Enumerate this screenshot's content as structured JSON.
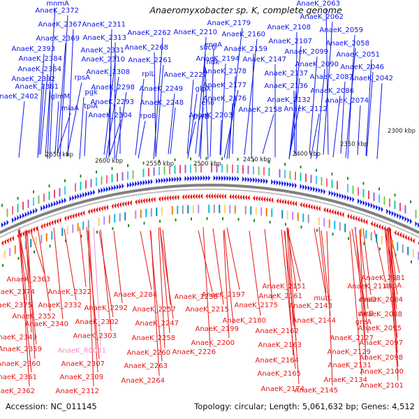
{
  "title": "Anaeromyxobacter sp. K, complete genome",
  "footer": {
    "accession": "Accession: NC_011145",
    "summary": "Topology: circular; Length: 5,061,632 bp; Genes: 4,512"
  },
  "colors": {
    "forward": "#0a14e6",
    "reverse": "#e61414",
    "rna": "#f08cd2",
    "backbone": "#808080",
    "tickmark": "#1e8c1e"
  },
  "ticks": [
    "2650 kbp",
    "2600 kbp",
    "2550 kbp",
    "2500 kbp",
    "2450 kbp",
    "2400 kbp",
    "2350 kbp",
    "2300 kbp"
  ],
  "forward_labels": [
    "mnmA",
    "AnaeK_2372",
    "AnaeK_2367",
    "AnaeK_2369",
    "AnaeK_2393",
    "AnaeK_2384",
    "AnaeK_2364",
    "AnaeK_2392",
    "AnaeK_2381",
    "AnaeK_2402",
    "glmM",
    "rpsA",
    "pgk",
    "tpiA",
    "miaA",
    "AnaeK_2311",
    "AnaeK_2313",
    "AnaeK_2331",
    "AnaeK_2310",
    "AnaeK_2308",
    "AnaeK_2298",
    "AnaeK_2293",
    "AnaeK_2304",
    "AnaeK_2262",
    "AnaeK_2268",
    "sucC",
    "AnaeK_2261",
    "ndk",
    "rplL",
    "AnaeK_2249",
    "glpX",
    "rpoB",
    "AnaeK_2248",
    "pyrB",
    "AnaeK_2210",
    "engA",
    "AnaeK_2227",
    "eno",
    "AnaeK_2179",
    "AnaeK_2194",
    "AnaeK_2178",
    "AnaeK_2177",
    "AnaeK_2176",
    "AnaeK_2203",
    "AnaeK_2160",
    "AnaeK_2159",
    "AnaeK_2147",
    "AnaeK_2158",
    "AnaeK_2108",
    "AnaeK_2107",
    "AnaeK_2137",
    "AnaeK_2136",
    "AnaeK_2132",
    "AnaeK_2112",
    "AnaeK_2063",
    "AnaeK_2062",
    "AnaeK_2059",
    "AnaeK_2058",
    "AnaeK_2099",
    "AnaeK_2051",
    "AnaeK_2090",
    "AnaeK_2046",
    "AnaeK_2087",
    "AnaeK_2086",
    "AnaeK_2042",
    "AnaeK_2074"
  ],
  "reverse_labels": [
    "AnaeK_2363",
    "AnaeK_2374",
    "AnaeK_2375",
    "AnaeK_2352",
    "AnaeK_2340",
    "AnaeK_2349",
    "AnaeK_2359",
    "AnaeK_2360",
    "AnaeK_2361",
    "AnaeK_2362",
    "AnaeK_2322",
    "AnaeK_2332",
    "AnaeK_2292",
    "AnaeK_2302",
    "AnaeK_2303",
    "AnaeK_R0031",
    "AnaeK_2307",
    "AnaeK_2309",
    "AnaeK_2312",
    "AnaeK_2284",
    "AnaeK_2257",
    "AnaeK_2247",
    "AnaeK_2258",
    "AnaeK_2260",
    "AnaeK_2263",
    "AnaeK_2264",
    "AnaeK_2238",
    "AnaeK_2215",
    "AnaeK_2226",
    "AnaeK_2197",
    "AnaeK_2199",
    "AnaeK_2200",
    "AnaeK_2180",
    "AnaeK_2175",
    "AnaeK_2151",
    "AnaeK_2161",
    "AnaeK_2162",
    "AnaeK_2163",
    "AnaeK_2164",
    "AnaeK_2165",
    "AnaeK_2174",
    "mutL",
    "AnaeK_2143",
    "AnaeK_2144",
    "AnaeK_2145",
    "AnaeK_2113",
    "coaD",
    "AnaeK_2127",
    "AnaeK_2129",
    "AnaeK_2131",
    "AnaeK_2134",
    "carB",
    "greA",
    "AnaeK_2081",
    "aspA",
    "AnaeK_2084",
    "AnaeK_2088",
    "AnaeK_2095",
    "AnaeK_2097",
    "AnaeK_2098",
    "AnaeK_2100",
    "AnaeK_2101"
  ]
}
